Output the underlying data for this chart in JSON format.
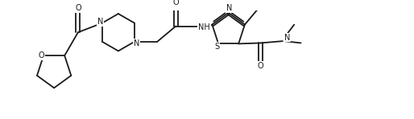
{
  "bg_color": "#ffffff",
  "line_color": "#1a1a1a",
  "line_width": 1.3,
  "font_size": 7.0,
  "figsize": [
    5.14,
    1.48
  ],
  "dpi": 100,
  "xlim": [
    0.0,
    10.3
  ],
  "ylim": [
    0.0,
    2.9
  ]
}
